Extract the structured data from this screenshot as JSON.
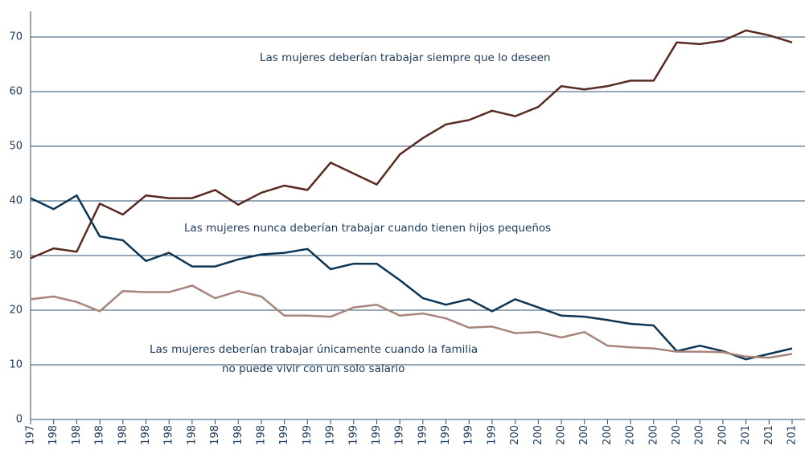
{
  "chart_data": {
    "type": "line",
    "categories": [
      "197",
      "198",
      "198",
      "198",
      "198",
      "198",
      "198",
      "198",
      "198",
      "198",
      "198",
      "199",
      "199",
      "199",
      "199",
      "199",
      "199",
      "199",
      "199",
      "199",
      "199",
      "200",
      "200",
      "200",
      "200",
      "200",
      "200",
      "200",
      "200",
      "200",
      "200",
      "201",
      "201",
      "201"
    ],
    "series": [
      {
        "color": "#5a2a22",
        "values": [
          29.5,
          31.3,
          30.7,
          39.5,
          37.5,
          41,
          40.5,
          40.5,
          42,
          39.3,
          41.5,
          42.8,
          42,
          47,
          45,
          43,
          48.5,
          51.5,
          54,
          54.8,
          56.5,
          55.5,
          57.2,
          61,
          60.4,
          61,
          62,
          62,
          69,
          68.7,
          69.3,
          71.2,
          70.3,
          69
        ]
      },
      {
        "color": "#0d3556",
        "values": [
          40.5,
          38.5,
          41,
          33.5,
          32.8,
          29,
          30.5,
          28,
          28,
          29.3,
          30.2,
          30.5,
          31.2,
          27.5,
          28.5,
          28.5,
          25.5,
          22.2,
          21,
          22,
          19.8,
          22,
          20.5,
          19,
          18.8,
          18.2,
          17.5,
          17.2,
          12.5,
          13.5,
          12.5,
          11,
          12,
          13
        ]
      },
      {
        "color": "#a6857a",
        "values": [
          22,
          22.5,
          21.5,
          19.8,
          23.5,
          23.3,
          23.3,
          24.5,
          22.2,
          23.5,
          22.5,
          19,
          19,
          18.8,
          20.5,
          21,
          19,
          19.4,
          18.5,
          16.8,
          17,
          15.8,
          16,
          15,
          16,
          13.5,
          13.2,
          13,
          12.4,
          12.4,
          12.3,
          11.5,
          11.3,
          12
        ]
      }
    ],
    "annotations": [
      "Las mujeres deberían trabajar siempre que lo deseen",
      "Las mujeres nunca deberían trabajar cuando tienen hijos pequeños",
      "Las mujeres deberían trabajar únicamente cuando la familia",
      "no puede vivir con un solo salario"
    ],
    "ylim": [
      0,
      70
    ],
    "yticks": [
      0,
      10,
      20,
      30,
      40,
      50,
      60,
      70
    ],
    "grid": true
  }
}
